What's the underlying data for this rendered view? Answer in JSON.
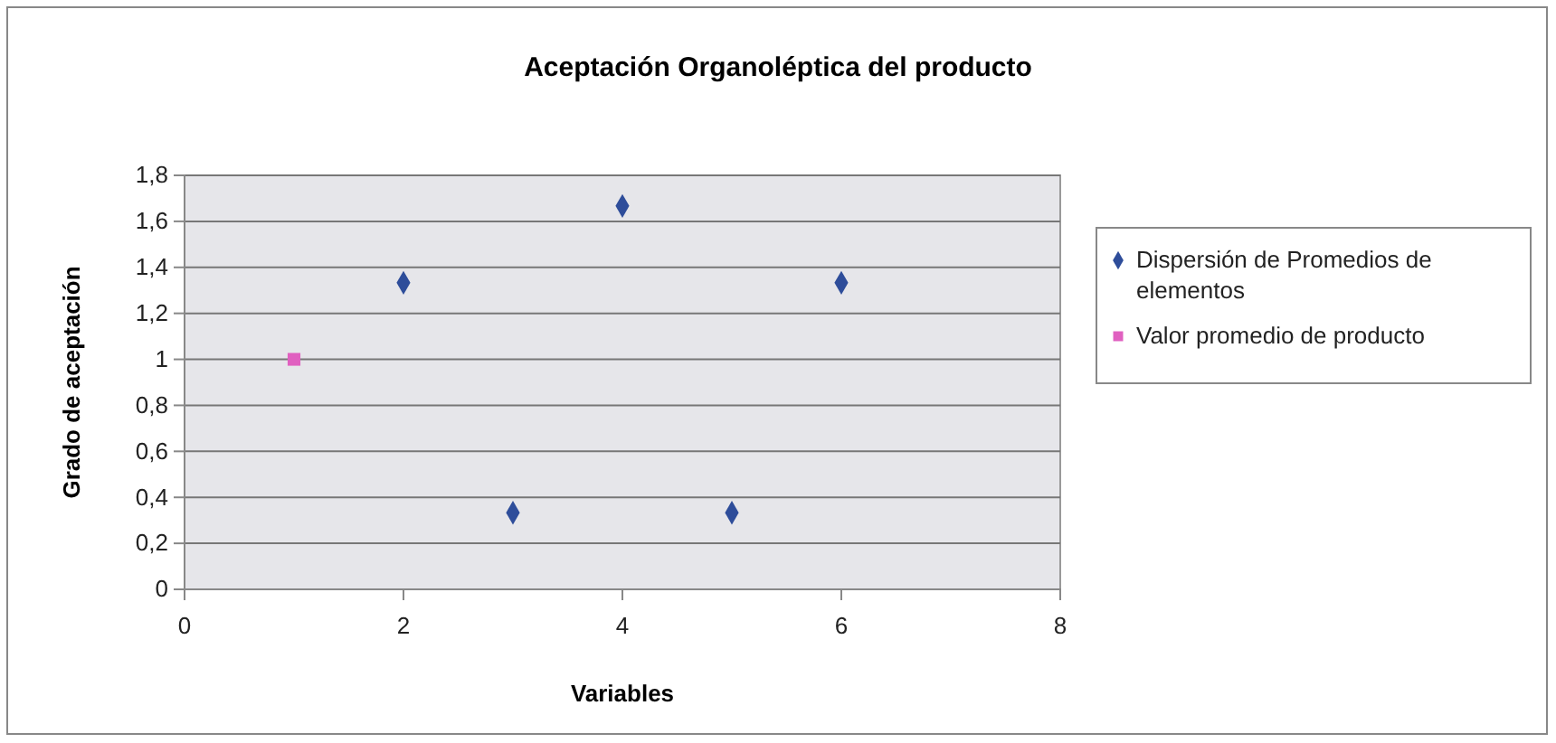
{
  "chart_data": {
    "type": "scatter",
    "title": "Aceptación Organoléptica del producto",
    "xlabel": "Variables",
    "ylabel": "Grado de aceptación",
    "xlim": [
      0,
      8
    ],
    "xticks": [
      0,
      2,
      4,
      6,
      8
    ],
    "ylim": [
      0,
      1.8
    ],
    "yticks": [
      0,
      {
        "value": 0.2,
        "label": "0,2"
      },
      {
        "value": 0.4,
        "label": "0,4"
      },
      {
        "value": 0.6,
        "label": "0,6"
      },
      {
        "value": 0.8,
        "label": "0,8"
      },
      1,
      {
        "value": 1.2,
        "label": "1,2"
      },
      {
        "value": 1.4,
        "label": "1,4"
      },
      {
        "value": 1.6,
        "label": "1,6"
      },
      {
        "value": 1.8,
        "label": "1,8"
      }
    ],
    "grid": "y",
    "legend": "right",
    "series": [
      {
        "name": "Dispersión de Promedios de elementos",
        "color": "#2e4d9a",
        "marker": "diamond",
        "x": [
          2,
          3,
          4,
          5,
          6
        ],
        "values": [
          1.333,
          0.333,
          1.667,
          0.333,
          1.333
        ]
      },
      {
        "name": "Valor promedio de producto",
        "color": "#e060c0",
        "marker": "square",
        "x": [
          1
        ],
        "values": [
          1
        ]
      }
    ]
  }
}
